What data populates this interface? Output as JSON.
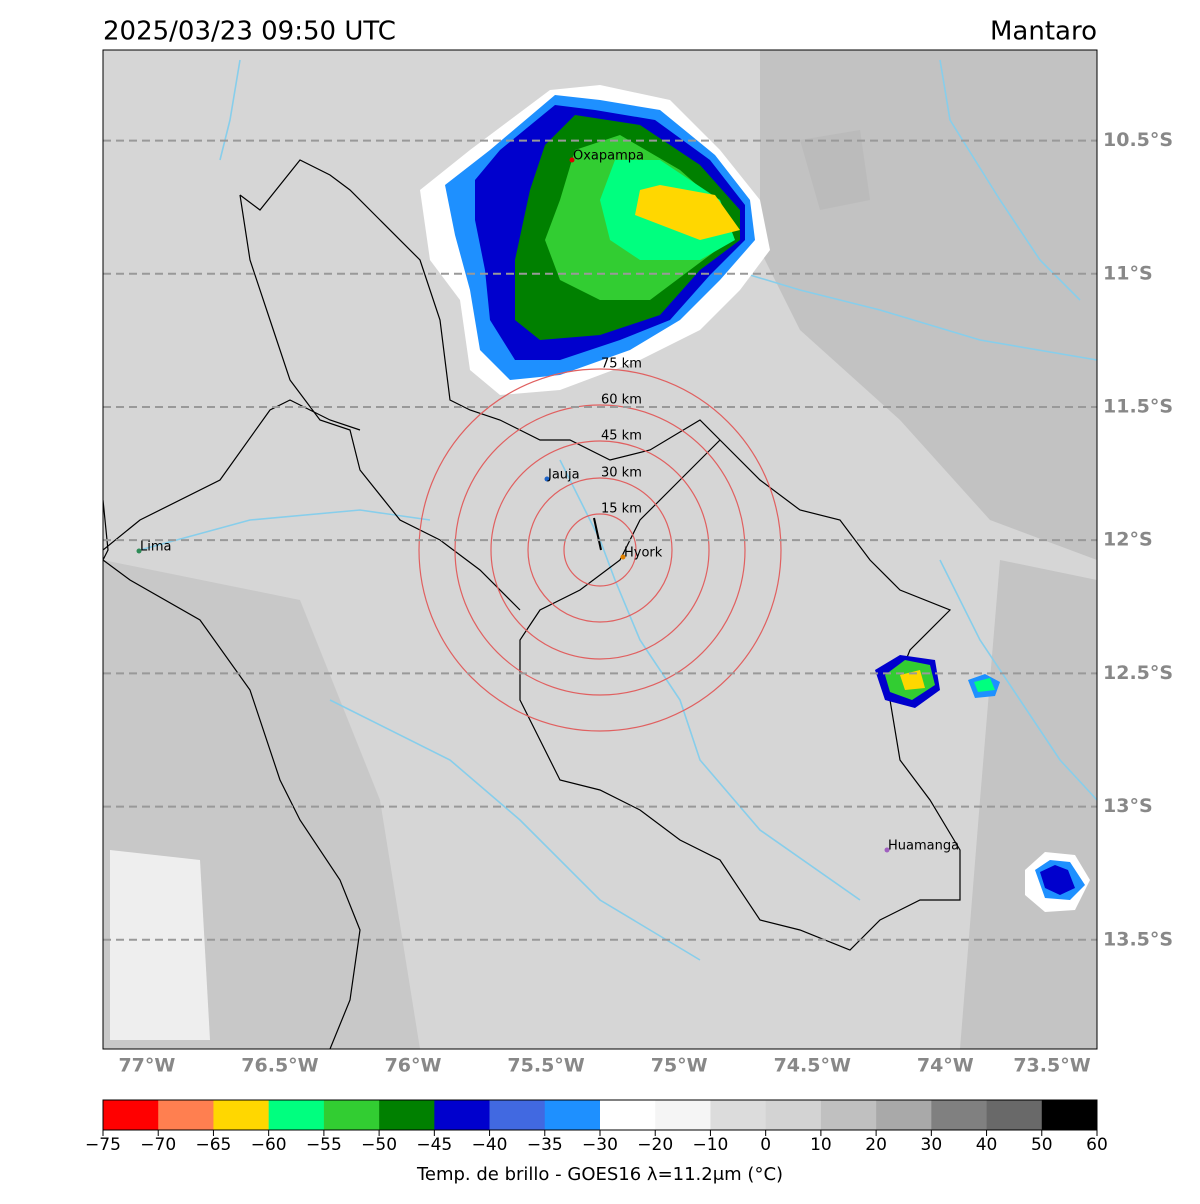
{
  "chart_data": {
    "type": "map",
    "title": "2025/03/23 09:50 UTC",
    "region": "Mantaro",
    "xlim": [
      -77.165,
      -73.43
    ],
    "ylim": [
      -13.91,
      -10.16
    ],
    "xticks": [
      {
        "value": -77,
        "label": "77°W"
      },
      {
        "value": -76.5,
        "label": "76.5°W"
      },
      {
        "value": -76,
        "label": "76°W"
      },
      {
        "value": -75.5,
        "label": "75.5°W"
      },
      {
        "value": -75,
        "label": "75°W"
      },
      {
        "value": -74.5,
        "label": "74.5°W"
      },
      {
        "value": -74,
        "label": "74°W"
      },
      {
        "value": -73.5,
        "label": "73.5°W"
      }
    ],
    "yticks": [
      {
        "value": -10.5,
        "label": "10.5°S"
      },
      {
        "value": -11,
        "label": "11°S"
      },
      {
        "value": -11.5,
        "label": "11.5°S"
      },
      {
        "value": -12,
        "label": "12°S"
      },
      {
        "value": -12.5,
        "label": "12.5°S"
      },
      {
        "value": -13,
        "label": "13°S"
      },
      {
        "value": -13.5,
        "label": "13.5°S"
      }
    ],
    "grid": true,
    "cities": [
      "Oxapampa",
      "Jauja",
      "Lima",
      "Hyork",
      "Huamanga"
    ],
    "rings": [
      "15 km",
      "30 km",
      "45 km",
      "60 km",
      "75 km"
    ],
    "colorbar": {
      "label": "Temp. de brillo - GOES16 λ=11.2μm (°C)",
      "bounds": [
        {
          "value": -75,
          "label": "−75"
        },
        {
          "value": -70,
          "label": "−70"
        },
        {
          "value": -65,
          "label": "−65"
        },
        {
          "value": -60,
          "label": "−60"
        },
        {
          "value": -55,
          "label": "−55"
        },
        {
          "value": -50,
          "label": "−50"
        },
        {
          "value": -45,
          "label": "−45"
        },
        {
          "value": -40,
          "label": "−40"
        },
        {
          "value": -35,
          "label": "−35"
        },
        {
          "value": -30,
          "label": "−30"
        },
        {
          "value": -20,
          "label": "−20"
        },
        {
          "value": -10,
          "label": "−10"
        },
        0,
        10,
        20,
        30,
        40,
        50,
        60
      ],
      "colors": [
        "#ff0000",
        "#ff7f50",
        "#ffd700",
        "#00ff7f",
        "#32cd32",
        "#008000",
        "#0000cd",
        "#4169e1",
        "#1e90ff",
        "#ffffff",
        "#f5f5f5",
        "#dcdcdc",
        "#d3d3d3",
        "#c0c0c0",
        "#a9a9a9",
        "#808080",
        "#696969",
        "#000000"
      ]
    }
  }
}
